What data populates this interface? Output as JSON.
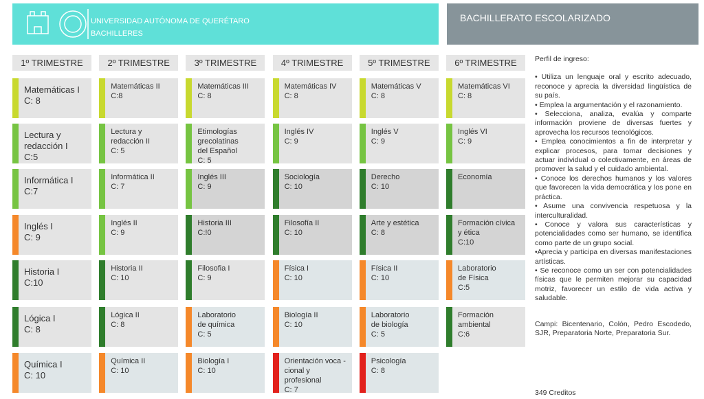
{
  "header": {
    "university": "UNIVERSIDAD AUTÓNOMA DE QUERÉTARO",
    "school": "BACHILLERES",
    "program": "BACHILLERATO ESCOLARIZADO"
  },
  "columns": [
    {
      "title": "1º TRIMESTRE",
      "courses": [
        {
          "name": [
            "Matemáticas I"
          ],
          "credits": "C: 8",
          "color": "#c8d92f",
          "bg": "#e4e4e4"
        },
        {
          "name": [
            "Lectura y",
            "redacción I"
          ],
          "credits": "C:5",
          "color": "#76c442",
          "bg": "#e4e4e4"
        },
        {
          "name": [
            "Informática I"
          ],
          "credits": "C:7",
          "color": "#76c442",
          "bg": "#e4e4e4"
        },
        {
          "name": [
            "Inglés I"
          ],
          "credits": "C: 9",
          "color": "#f5882a",
          "bg": "#e4e4e4"
        },
        {
          "name": [
            "Historia I"
          ],
          "credits": "C:10",
          "color": "#2f7d2c",
          "bg": "#e4e4e4"
        },
        {
          "name": [
            "Lógica I"
          ],
          "credits": "C: 8",
          "color": "#2f7d2c",
          "bg": "#e4e4e4"
        },
        {
          "name": [
            "Química I"
          ],
          "credits": "C: 10",
          "color": "#f5882a",
          "bg": "#dfe6e8"
        }
      ]
    },
    {
      "title": "2º TRIMESTRE",
      "courses": [
        {
          "name": [
            "Matemáticas II"
          ],
          "credits": "C:8",
          "color": "#c8d92f",
          "bg": "#e4e4e4"
        },
        {
          "name": [
            "Lectura y",
            "redacción II"
          ],
          "credits": "C: 5",
          "color": "#76c442",
          "bg": "#e4e4e4"
        },
        {
          "name": [
            "Informática II"
          ],
          "credits": "C: 7",
          "color": "#76c442",
          "bg": "#e4e4e4"
        },
        {
          "name": [
            "Inglés II"
          ],
          "credits": "C: 9",
          "color": "#76c442",
          "bg": "#e4e4e4"
        },
        {
          "name": [
            "Historia II"
          ],
          "credits": "C: 10",
          "color": "#2f7d2c",
          "bg": "#e4e4e4"
        },
        {
          "name": [
            "Lógica II"
          ],
          "credits": "C: 8",
          "color": "#2f7d2c",
          "bg": "#e4e4e4"
        },
        {
          "name": [
            "Química II"
          ],
          "credits": "C: 10",
          "color": "#f5882a",
          "bg": "#dfe6e8"
        }
      ]
    },
    {
      "title": "3º TRIMESTRE",
      "courses": [
        {
          "name": [
            "Matemáticas III"
          ],
          "credits": "C: 8",
          "color": "#c8d92f",
          "bg": "#e4e4e4"
        },
        {
          "name": [
            "Etimologías",
            "grecolatinas",
            "del Español"
          ],
          "credits": "C: 5",
          "color": "#76c442",
          "bg": "#e4e4e4"
        },
        {
          "name": [
            "Inglés III"
          ],
          "credits": "C: 9",
          "color": "#76c442",
          "bg": "#d4d4d4"
        },
        {
          "name": [
            "Historia III"
          ],
          "credits": "C:!0",
          "color": "#2f7d2c",
          "bg": "#d4d4d4"
        },
        {
          "name": [
            "Filosofia I"
          ],
          "credits": "C: 9",
          "color": "#2f7d2c",
          "bg": "#e4e4e4"
        },
        {
          "name": [
            "Laboratorio",
            "de química"
          ],
          "credits": "C: 5",
          "color": "#f5882a",
          "bg": "#dfe6e8"
        },
        {
          "name": [
            "Biología I"
          ],
          "credits": "C: 10",
          "color": "#f5882a",
          "bg": "#dfe6e8"
        }
      ]
    },
    {
      "title": "4º TRIMESTRE",
      "courses": [
        {
          "name": [
            "Matemáticas IV"
          ],
          "credits": "C: 8",
          "color": "#c8d92f",
          "bg": "#e4e4e4"
        },
        {
          "name": [
            "Inglés IV"
          ],
          "credits": "C: 9",
          "color": "#76c442",
          "bg": "#e4e4e4"
        },
        {
          "name": [
            "Sociología"
          ],
          "credits": "C: 10",
          "color": "#2f7d2c",
          "bg": "#d4d4d4"
        },
        {
          "name": [
            "Filosofía II"
          ],
          "credits": "C: 10",
          "color": "#2f7d2c",
          "bg": "#d4d4d4"
        },
        {
          "name": [
            "Física I"
          ],
          "credits": "C: 10",
          "color": "#f5882a",
          "bg": "#dfe6e8"
        },
        {
          "name": [
            "Biología II"
          ],
          "credits": "C: 10",
          "color": "#f5882a",
          "bg": "#dfe6e8"
        },
        {
          "name": [
            "Orientación voca -",
            "cional y profesional"
          ],
          "credits": "C: 7",
          "color": "#e2211c",
          "bg": "#dfe6e8"
        }
      ]
    },
    {
      "title": "5º TRIMESTRE",
      "courses": [
        {
          "name": [
            "Matemáticas V"
          ],
          "credits": "C: 8",
          "color": "#c8d92f",
          "bg": "#e4e4e4"
        },
        {
          "name": [
            "Inglés V"
          ],
          "credits": "C: 9",
          "color": "#76c442",
          "bg": "#e4e4e4"
        },
        {
          "name": [
            "Derecho"
          ],
          "credits": "C: 10",
          "color": "#2f7d2c",
          "bg": "#d4d4d4"
        },
        {
          "name": [
            "Arte y estética"
          ],
          "credits": "C: 8",
          "color": "#2f7d2c",
          "bg": "#d4d4d4"
        },
        {
          "name": [
            "Física II"
          ],
          "credits": "C: 10",
          "color": "#f5882a",
          "bg": "#dfe6e8"
        },
        {
          "name": [
            "Laboratorio",
            "de biología"
          ],
          "credits": "C: 5",
          "color": "#f5882a",
          "bg": "#dfe6e8"
        },
        {
          "name": [
            "Psicología"
          ],
          "credits": "C: 8",
          "color": "#e2211c",
          "bg": "#dfe6e8"
        }
      ]
    },
    {
      "title": "6º TRIMESTRE",
      "courses": [
        {
          "name": [
            "Matemáticas VI"
          ],
          "credits": "C: 8",
          "color": "#c8d92f",
          "bg": "#e4e4e4"
        },
        {
          "name": [
            "Inglés VI"
          ],
          "credits": "C: 9",
          "color": "#76c442",
          "bg": "#e4e4e4"
        },
        {
          "name": [
            "Economía"
          ],
          "credits": "",
          "color": "#2f7d2c",
          "bg": "#d4d4d4"
        },
        {
          "name": [
            "Formación cívica",
            "y ética"
          ],
          "credits": "C:10",
          "color": "#2f7d2c",
          "bg": "#d4d4d4"
        },
        {
          "name": [
            "Laboratorio",
            "de Física"
          ],
          "credits": "C:5",
          "color": "#f5882a",
          "bg": "#dfe6e8"
        },
        {
          "name": [
            "Formación",
            "ambiental"
          ],
          "credits": "C:6",
          "color": "#2f7d2c",
          "bg": "#e4e4e4"
        }
      ]
    }
  ],
  "profile": {
    "title": "Perfil de ingreso:",
    "items": [
      "• Utiliza un lenguaje oral y escrito adecuado, reconoce y aprecia la diversidad lingüística de su país.",
      "• Emplea la argumentación y el razonamiento.",
      "• Selecciona, analiza, evalúa y comparte información proviene de diversas fuertes y aprovecha los recursos tecnológicos.",
      "• Emplea conocimientos a fin de interpretar y explicar procesos, para tomar decisiones y actuar individual o colectivamente, en áreas de promover la salud y el cuidado ambiental.",
      "• Conoce los derechos humanos y los valores que favorecen la vida democrática y los pone en práctica.",
      "• Asume una convivencia respetuosa y la interculturalidad.",
      "• Conoce y valora sus características y potencialidades como ser humano, se identifica como parte de un grupo social.",
      "•Aprecia y participa en diversas manifestaciones artísticas.",
      "• Se reconoce como un ser con potencialidades físicas que le permiten mejorar su capacidad motriz, favorecer un estilo de vida activa y saludable."
    ],
    "campi": "Campi: Bicentenario, Colón, Pedro Escodedo, SJR, Preparatoria Norte, Preparatoria Sur.",
    "total": "349 Creditos"
  }
}
